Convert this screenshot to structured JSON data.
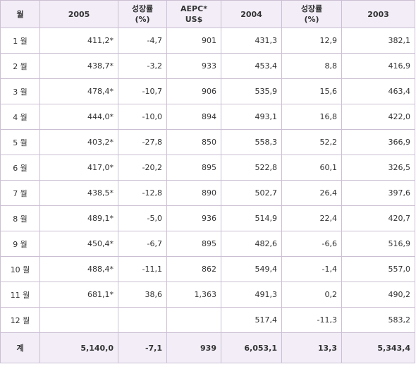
{
  "headers": {
    "month": "월",
    "y2005": "2005",
    "growth1_line1": "성장률",
    "growth1_line2": "(%)",
    "aepc_line1": "AEPC*",
    "aepc_line2": "US$",
    "y2004": "2004",
    "growth2_line1": "성장률",
    "growth2_line2": "(%)",
    "y2003": "2003"
  },
  "rows": [
    {
      "month": "1 월",
      "v2005": "411,2*",
      "g1": "-4,7",
      "aepc": "901",
      "v2004": "431,3",
      "g2": "12,9",
      "v2003": "382,1"
    },
    {
      "month": "2 월",
      "v2005": "438,7*",
      "g1": "-3,2",
      "aepc": "933",
      "v2004": "453,4",
      "g2": "8,8",
      "v2003": "416,9"
    },
    {
      "month": "3 월",
      "v2005": "478,4*",
      "g1": "-10,7",
      "aepc": "906",
      "v2004": "535,9",
      "g2": "15,6",
      "v2003": "463,4"
    },
    {
      "month": "4 월",
      "v2005": "444,0*",
      "g1": "-10,0",
      "aepc": "894",
      "v2004": "493,1",
      "g2": "16,8",
      "v2003": "422,0"
    },
    {
      "month": "5 월",
      "v2005": "403,2*",
      "g1": "-27,8",
      "aepc": "850",
      "v2004": "558,3",
      "g2": "52,2",
      "v2003": "366,9"
    },
    {
      "month": "6 월",
      "v2005": "417,0*",
      "g1": "-20,2",
      "aepc": "895",
      "v2004": "522,8",
      "g2": "60,1",
      "v2003": "326,5"
    },
    {
      "month": "7 월",
      "v2005": "438,5*",
      "g1": "-12,8",
      "aepc": "890",
      "v2004": "502,7",
      "g2": "26,4",
      "v2003": "397,6"
    },
    {
      "month": "8 월",
      "v2005": "489,1*",
      "g1": "-5,0",
      "aepc": "936",
      "v2004": "514,9",
      "g2": "22,4",
      "v2003": "420,7"
    },
    {
      "month": "9 월",
      "v2005": "450,4*",
      "g1": "-6,7",
      "aepc": "895",
      "v2004": "482,6",
      "g2": "-6,6",
      "v2003": "516,9"
    },
    {
      "month": "10 월",
      "v2005": "488,4*",
      "g1": "-11,1",
      "aepc": "862",
      "v2004": "549,4",
      "g2": "-1,4",
      "v2003": "557,0"
    },
    {
      "month": "11 월",
      "v2005": "681,1*",
      "g1": "38,6",
      "aepc": "1,363",
      "v2004": "491,3",
      "g2": "0,2",
      "v2003": "490,2"
    },
    {
      "month": "12 월",
      "v2005": "",
      "g1": "",
      "aepc": "",
      "v2004": "517,4",
      "g2": "-11,3",
      "v2003": "583,2"
    }
  ],
  "total": {
    "label": "계",
    "v2005": "5,140,0",
    "g1": "-7,1",
    "aepc": "939",
    "v2004": "6,053,1",
    "g2": "13,3",
    "v2003": "5,343,4"
  }
}
